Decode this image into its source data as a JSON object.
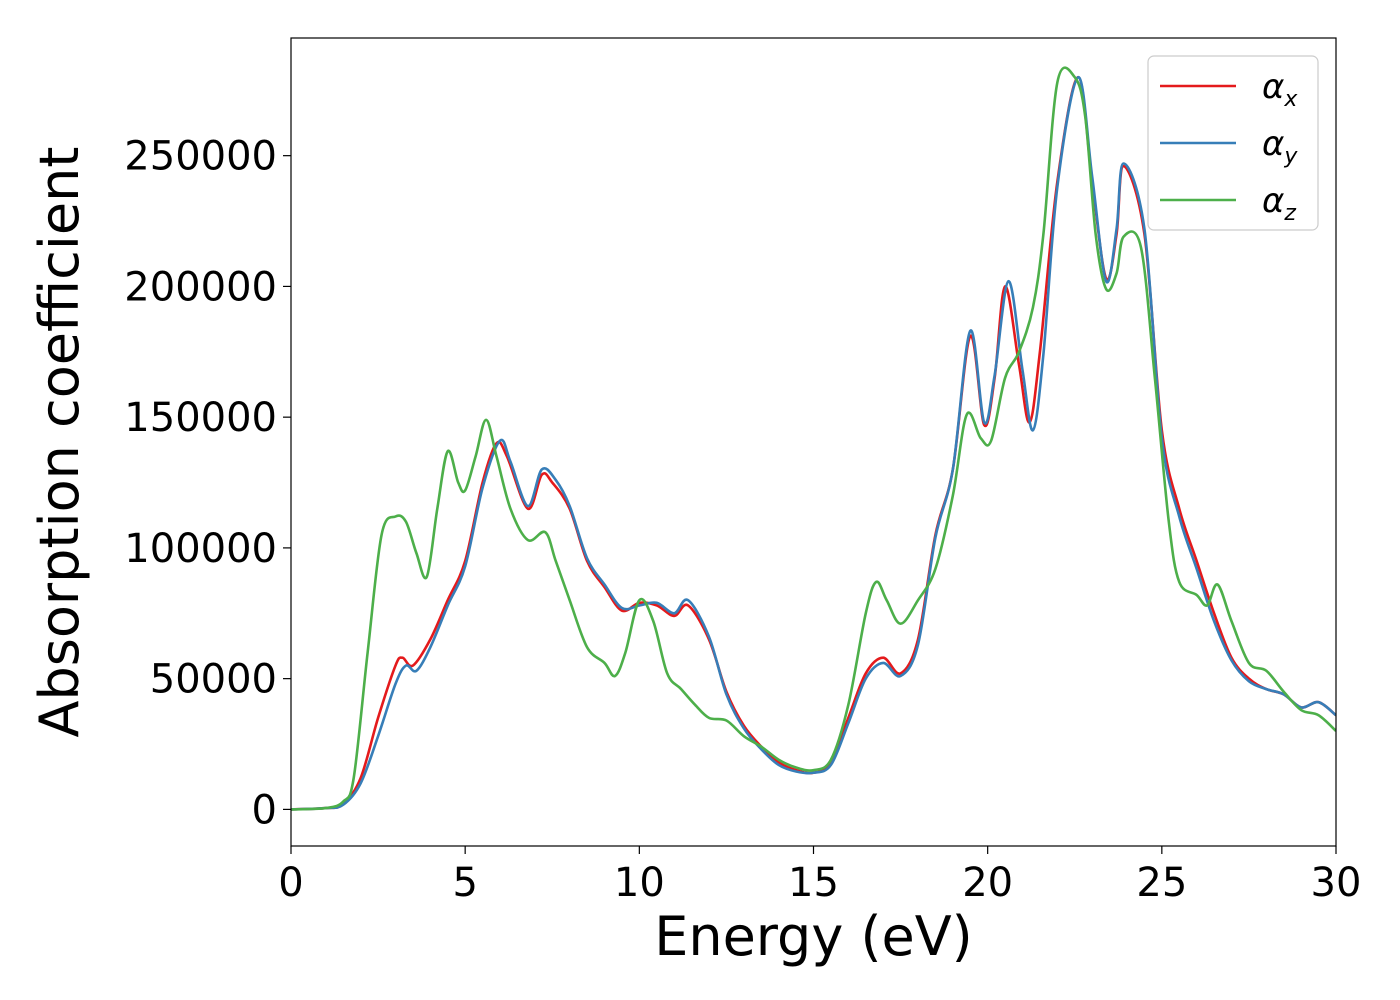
{
  "chart_data": {
    "type": "line",
    "title": "",
    "xlabel": "Energy (eV)",
    "ylabel": "Absorption coefficient",
    "xlim": [
      0,
      30
    ],
    "ylim": [
      -14000,
      295000
    ],
    "grid": false,
    "legend_position": "top-right",
    "x_ticks": [
      0,
      5,
      10,
      15,
      20,
      25,
      30
    ],
    "x_tick_labels": [
      "0",
      "5",
      "10",
      "15",
      "20",
      "25",
      "30"
    ],
    "y_ticks": [
      0,
      50000,
      100000,
      150000,
      200000,
      250000
    ],
    "y_tick_labels": [
      "0",
      "50000",
      "100000",
      "150000",
      "200000",
      "250000"
    ],
    "series": [
      {
        "name": "α",
        "subscript": "x",
        "color": "#e41a1c",
        "points": [
          [
            0,
            0
          ],
          [
            1,
            500
          ],
          [
            1.5,
            2000
          ],
          [
            2,
            12000
          ],
          [
            2.5,
            35000
          ],
          [
            3,
            55000
          ],
          [
            3.2,
            58000
          ],
          [
            3.5,
            55000
          ],
          [
            4,
            65000
          ],
          [
            4.5,
            80000
          ],
          [
            5,
            95000
          ],
          [
            5.5,
            125000
          ],
          [
            5.9,
            140000
          ],
          [
            6.2,
            135000
          ],
          [
            6.8,
            115000
          ],
          [
            7.2,
            128000
          ],
          [
            7.5,
            125000
          ],
          [
            8,
            115000
          ],
          [
            8.5,
            95000
          ],
          [
            9,
            85000
          ],
          [
            9.5,
            76000
          ],
          [
            10,
            79000
          ],
          [
            10.5,
            78000
          ],
          [
            11,
            74000
          ],
          [
            11.4,
            78000
          ],
          [
            12,
            65000
          ],
          [
            12.5,
            45000
          ],
          [
            13,
            32000
          ],
          [
            13.5,
            24000
          ],
          [
            14,
            18000
          ],
          [
            14.5,
            15000
          ],
          [
            15,
            14000
          ],
          [
            15.5,
            18000
          ],
          [
            16,
            35000
          ],
          [
            16.5,
            52000
          ],
          [
            17,
            58000
          ],
          [
            17.5,
            52000
          ],
          [
            18,
            65000
          ],
          [
            18.5,
            105000
          ],
          [
            19,
            130000
          ],
          [
            19.5,
            181000
          ],
          [
            19.9,
            147000
          ],
          [
            20.2,
            165000
          ],
          [
            20.5,
            200000
          ],
          [
            20.9,
            170000
          ],
          [
            21.2,
            148000
          ],
          [
            21.5,
            175000
          ],
          [
            22,
            240000
          ],
          [
            22.6,
            280000
          ],
          [
            23,
            240000
          ],
          [
            23.4,
            203000
          ],
          [
            23.7,
            220000
          ],
          [
            23.9,
            246000
          ],
          [
            24.5,
            220000
          ],
          [
            25,
            145000
          ],
          [
            25.5,
            115000
          ],
          [
            26,
            95000
          ],
          [
            26.5,
            75000
          ],
          [
            27,
            58000
          ],
          [
            27.5,
            50000
          ],
          [
            28,
            46000
          ],
          [
            28.5,
            44000
          ],
          [
            29,
            39000
          ],
          [
            29.5,
            41000
          ],
          [
            30,
            36000
          ]
        ]
      },
      {
        "name": "α",
        "subscript": "y",
        "color": "#377eb8",
        "points": [
          [
            0,
            0
          ],
          [
            1,
            500
          ],
          [
            1.5,
            1800
          ],
          [
            2,
            10000
          ],
          [
            2.5,
            28000
          ],
          [
            3,
            48000
          ],
          [
            3.3,
            55000
          ],
          [
            3.6,
            53000
          ],
          [
            4,
            62000
          ],
          [
            4.5,
            78000
          ],
          [
            5,
            93000
          ],
          [
            5.5,
            123000
          ],
          [
            6,
            141000
          ],
          [
            6.3,
            133000
          ],
          [
            6.8,
            116000
          ],
          [
            7.2,
            130000
          ],
          [
            7.6,
            126000
          ],
          [
            8,
            116000
          ],
          [
            8.5,
            96000
          ],
          [
            9,
            86000
          ],
          [
            9.5,
            77000
          ],
          [
            10,
            78000
          ],
          [
            10.5,
            79000
          ],
          [
            11,
            75000
          ],
          [
            11.4,
            80000
          ],
          [
            12,
            66000
          ],
          [
            12.5,
            44000
          ],
          [
            13,
            31000
          ],
          [
            13.5,
            23000
          ],
          [
            14,
            17000
          ],
          [
            14.5,
            14500
          ],
          [
            15,
            14000
          ],
          [
            15.5,
            17000
          ],
          [
            16,
            33000
          ],
          [
            16.5,
            50000
          ],
          [
            17,
            56000
          ],
          [
            17.5,
            51000
          ],
          [
            18,
            63000
          ],
          [
            18.5,
            104000
          ],
          [
            19,
            130000
          ],
          [
            19.5,
            183000
          ],
          [
            19.9,
            148000
          ],
          [
            20.2,
            166000
          ],
          [
            20.6,
            202000
          ],
          [
            21,
            168000
          ],
          [
            21.3,
            145000
          ],
          [
            21.6,
            174000
          ],
          [
            22,
            238000
          ],
          [
            22.6,
            280000
          ],
          [
            23,
            242000
          ],
          [
            23.4,
            202000
          ],
          [
            23.7,
            222000
          ],
          [
            23.9,
            247000
          ],
          [
            24.5,
            222000
          ],
          [
            25,
            142000
          ],
          [
            25.5,
            112000
          ],
          [
            26,
            92000
          ],
          [
            26.5,
            72000
          ],
          [
            27,
            57000
          ],
          [
            27.5,
            49000
          ],
          [
            28,
            46000
          ],
          [
            28.5,
            44000
          ],
          [
            29,
            39000
          ],
          [
            29.5,
            41000
          ],
          [
            30,
            36000
          ]
        ]
      },
      {
        "name": "α",
        "subscript": "z",
        "color": "#4daf4a",
        "points": [
          [
            0,
            0
          ],
          [
            1,
            500
          ],
          [
            1.5,
            3000
          ],
          [
            1.8,
            12000
          ],
          [
            2.2,
            60000
          ],
          [
            2.6,
            105000
          ],
          [
            3,
            112000
          ],
          [
            3.3,
            110000
          ],
          [
            3.6,
            98000
          ],
          [
            3.9,
            89000
          ],
          [
            4.2,
            115000
          ],
          [
            4.5,
            137000
          ],
          [
            4.8,
            125000
          ],
          [
            5,
            122000
          ],
          [
            5.3,
            135000
          ],
          [
            5.6,
            149000
          ],
          [
            5.9,
            135000
          ],
          [
            6.3,
            115000
          ],
          [
            6.8,
            103000
          ],
          [
            7.3,
            106000
          ],
          [
            7.6,
            95000
          ],
          [
            8,
            80000
          ],
          [
            8.5,
            62000
          ],
          [
            9,
            56000
          ],
          [
            9.3,
            51000
          ],
          [
            9.6,
            60000
          ],
          [
            10,
            80000
          ],
          [
            10.4,
            72000
          ],
          [
            10.8,
            52000
          ],
          [
            11.2,
            46000
          ],
          [
            11.6,
            40000
          ],
          [
            12,
            35000
          ],
          [
            12.5,
            34000
          ],
          [
            13,
            28000
          ],
          [
            13.5,
            24000
          ],
          [
            14,
            19000
          ],
          [
            14.5,
            16000
          ],
          [
            15,
            15000
          ],
          [
            15.5,
            19000
          ],
          [
            16,
            40000
          ],
          [
            16.5,
            75000
          ],
          [
            16.8,
            87000
          ],
          [
            17.1,
            80000
          ],
          [
            17.5,
            71000
          ],
          [
            18,
            80000
          ],
          [
            18.5,
            92000
          ],
          [
            19,
            120000
          ],
          [
            19.4,
            151000
          ],
          [
            19.8,
            142000
          ],
          [
            20.1,
            141000
          ],
          [
            20.5,
            165000
          ],
          [
            20.9,
            175000
          ],
          [
            21.3,
            192000
          ],
          [
            21.6,
            220000
          ],
          [
            22,
            278000
          ],
          [
            22.5,
            280000
          ],
          [
            22.8,
            265000
          ],
          [
            23.1,
            220000
          ],
          [
            23.4,
            199000
          ],
          [
            23.7,
            205000
          ],
          [
            23.9,
            219000
          ],
          [
            24.4,
            215000
          ],
          [
            24.8,
            165000
          ],
          [
            25.2,
            110000
          ],
          [
            25.5,
            87000
          ],
          [
            26,
            82000
          ],
          [
            26.3,
            78000
          ],
          [
            26.6,
            86000
          ],
          [
            27,
            72000
          ],
          [
            27.5,
            56000
          ],
          [
            28,
            53000
          ],
          [
            28.5,
            45000
          ],
          [
            29,
            38000
          ],
          [
            29.5,
            36000
          ],
          [
            30,
            30000
          ]
        ]
      }
    ]
  }
}
